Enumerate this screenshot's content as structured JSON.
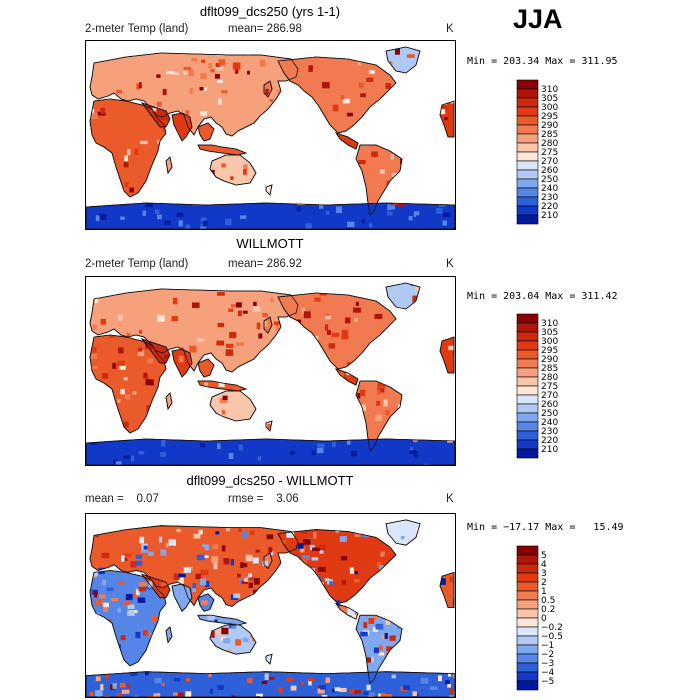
{
  "season": "JJA",
  "panels": [
    {
      "title": "dflt099_dcs250 (yrs 1-1)",
      "variable": "2-meter Temp (land)",
      "stat": "mean= 286.98",
      "units": "K",
      "minmax": "Min = 203.34 Max = 311.95",
      "palette": "warm",
      "colorbar": {
        "labels": [
          "310",
          "305",
          "300",
          "295",
          "290",
          "285",
          "280",
          "275",
          "270",
          "260",
          "250",
          "240",
          "230",
          "220",
          "210"
        ],
        "colors": [
          "#8b0000",
          "#b0150a",
          "#cc2a0f",
          "#e03a12",
          "#ea5a2a",
          "#f27a50",
          "#f6a07c",
          "#fac6ab",
          "#fde6d8",
          "#d9e6fb",
          "#b0caf5",
          "#80a8ee",
          "#5585e6",
          "#2e60da",
          "#1238c8",
          "#001a9e"
        ]
      }
    },
    {
      "title": "WILLMOTT",
      "variable": "2-meter Temp (land)",
      "stat": "mean= 286.92",
      "units": "K",
      "minmax": "Min = 203.04 Max = 311.42",
      "palette": "warm",
      "colorbar": {
        "labels": [
          "310",
          "305",
          "300",
          "295",
          "290",
          "285",
          "280",
          "275",
          "270",
          "260",
          "250",
          "240",
          "230",
          "220",
          "210"
        ],
        "colors": [
          "#8b0000",
          "#b0150a",
          "#cc2a0f",
          "#e03a12",
          "#ea5a2a",
          "#f27a50",
          "#f6a07c",
          "#fac6ab",
          "#fde6d8",
          "#d9e6fb",
          "#b0caf5",
          "#80a8ee",
          "#5585e6",
          "#2e60da",
          "#1238c8",
          "#001a9e"
        ]
      }
    },
    {
      "title": "dflt099_dcs250 - WILLMOTT",
      "stat": "mean =    0.07",
      "stat2": "rmse =    3.06",
      "units": "K",
      "minmax": "Min = −17.17 Max =   15.49",
      "palette": "diff",
      "colorbar": {
        "labels": [
          "5",
          "4",
          "3",
          "2",
          "1",
          "0.5",
          "0.2",
          "0",
          "−0.2",
          "−0.5",
          "−1",
          "−2",
          "−3",
          "−4",
          "−5"
        ],
        "colors": [
          "#8b0000",
          "#b0150a",
          "#cc2a0f",
          "#e03a12",
          "#ea5a2a",
          "#f27a50",
          "#f6a07c",
          "#fac6ab",
          "#fde6d8",
          "#d9e6fb",
          "#b0caf5",
          "#80a8ee",
          "#5585e6",
          "#2e60da",
          "#1238c8",
          "#001a9e"
        ]
      }
    }
  ]
}
